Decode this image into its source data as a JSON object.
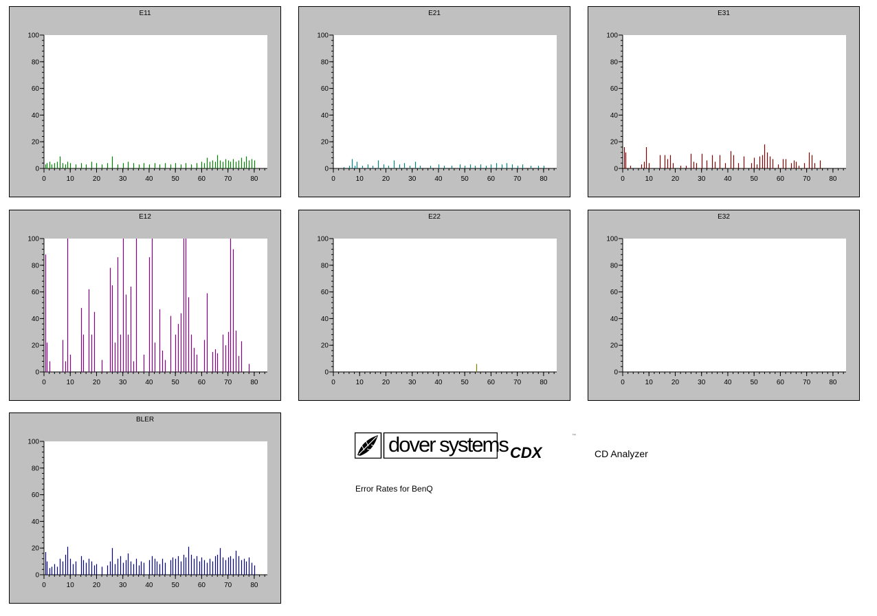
{
  "branding": {
    "logo_text": "dover systems",
    "product": "CDX",
    "trademark": "™",
    "product_desc": "CD Analyzer",
    "subtitle": "Error Rates for BenQ"
  },
  "chart_data": [
    {
      "type": "bar",
      "title": "E11",
      "color": "#008000",
      "xlim": [
        0,
        85
      ],
      "ylim": [
        0,
        100
      ],
      "xticks": [
        0,
        10,
        20,
        30,
        40,
        50,
        60,
        70,
        80
      ],
      "yticks": [
        0,
        20,
        40,
        60,
        80,
        100
      ],
      "x": [
        0.5,
        1,
        2,
        3,
        4,
        5,
        6,
        7,
        8,
        9,
        10,
        12,
        14,
        16,
        18,
        20,
        22,
        24,
        26,
        28,
        30,
        32,
        34,
        36,
        38,
        40,
        42,
        44,
        46,
        48,
        50,
        52,
        54,
        56,
        58,
        60,
        61,
        62,
        63,
        64,
        65,
        66,
        67,
        68,
        69,
        70,
        71,
        72,
        73,
        74,
        75,
        76,
        77,
        78,
        79,
        80
      ],
      "y": [
        3,
        4,
        5,
        3,
        4,
        5,
        9,
        4,
        3,
        5,
        4,
        3,
        4,
        3,
        5,
        4,
        3,
        4,
        9,
        3,
        4,
        5,
        4,
        3,
        4,
        3,
        4,
        3,
        4,
        3,
        4,
        3,
        4,
        3,
        4,
        5,
        4,
        8,
        5,
        6,
        5,
        10,
        6,
        5,
        7,
        6,
        5,
        7,
        5,
        6,
        8,
        5,
        9,
        6,
        7,
        6
      ]
    },
    {
      "type": "bar",
      "title": "E21",
      "color": "#008080",
      "xlim": [
        0,
        85
      ],
      "ylim": [
        0,
        100
      ],
      "xticks": [
        0,
        10,
        20,
        30,
        40,
        50,
        60,
        70,
        80
      ],
      "yticks": [
        0,
        20,
        40,
        60,
        80,
        100
      ],
      "x": [
        4,
        6,
        7,
        8,
        9,
        11,
        13,
        15,
        17,
        19,
        21,
        23,
        25,
        27,
        29,
        31,
        33,
        37,
        40,
        42,
        45,
        48,
        50,
        52,
        54,
        56,
        58,
        60,
        62,
        64,
        66,
        68,
        70,
        72,
        75,
        78,
        80
      ],
      "y": [
        1,
        2,
        7,
        2,
        5,
        2,
        3,
        2,
        6,
        3,
        2,
        6,
        3,
        4,
        2,
        5,
        2,
        2,
        3,
        2,
        2,
        3,
        2,
        3,
        2,
        3,
        2,
        3,
        4,
        3,
        4,
        3,
        2,
        3,
        2,
        2,
        2
      ]
    },
    {
      "type": "bar",
      "title": "E31",
      "color": "#800000",
      "xlim": [
        0,
        85
      ],
      "ylim": [
        0,
        100
      ],
      "xticks": [
        0,
        10,
        20,
        30,
        40,
        50,
        60,
        70,
        80
      ],
      "yticks": [
        0,
        20,
        40,
        60,
        80,
        100
      ],
      "x": [
        0.5,
        1,
        3,
        7,
        8,
        9,
        10,
        14,
        16,
        17,
        18,
        19,
        22,
        24,
        26,
        27,
        28,
        30,
        32,
        34,
        35,
        37,
        39,
        41,
        42,
        44,
        46,
        49,
        50,
        51,
        52,
        53,
        54,
        55,
        56,
        57,
        59,
        61,
        62,
        64,
        65,
        66,
        67,
        69,
        71,
        72,
        73,
        75
      ],
      "y": [
        16,
        12,
        2,
        3,
        5,
        16,
        4,
        10,
        10,
        7,
        10,
        4,
        2,
        2,
        11,
        5,
        4,
        11,
        6,
        10,
        5,
        10,
        4,
        13,
        10,
        4,
        9,
        4,
        8,
        3,
        9,
        10,
        18,
        12,
        9,
        7,
        3,
        7,
        7,
        4,
        6,
        5,
        2,
        4,
        12,
        10,
        4,
        6
      ]
    },
    {
      "type": "bar",
      "title": "E12",
      "color": "#800080",
      "xlim": [
        0,
        85
      ],
      "ylim": [
        0,
        100
      ],
      "xticks": [
        0,
        10,
        20,
        30,
        40,
        50,
        60,
        70,
        80
      ],
      "yticks": [
        0,
        20,
        40,
        60,
        80,
        100
      ],
      "x": [
        0.5,
        1,
        2,
        7,
        8,
        9,
        10,
        14,
        15,
        17,
        18,
        19,
        22,
        25,
        26,
        27,
        28,
        29,
        30,
        31,
        32,
        33,
        34,
        35,
        38,
        40,
        41,
        42,
        44,
        45,
        46,
        48,
        50,
        51,
        52,
        53,
        54,
        55,
        56,
        57,
        58,
        61,
        62,
        64,
        65,
        66,
        68,
        69,
        70,
        71,
        72,
        73,
        74,
        75,
        78
      ],
      "y": [
        88,
        22,
        8,
        24,
        8,
        100,
        13,
        48,
        28,
        62,
        28,
        45,
        9,
        78,
        65,
        22,
        86,
        28,
        100,
        58,
        28,
        64,
        8,
        100,
        13,
        86,
        100,
        22,
        47,
        16,
        9,
        42,
        28,
        36,
        44,
        100,
        100,
        56,
        28,
        18,
        13,
        24,
        59,
        15,
        17,
        14,
        28,
        20,
        30,
        100,
        92,
        31,
        12,
        23,
        6
      ]
    },
    {
      "type": "bar",
      "title": "E22",
      "color": "#808000",
      "xlim": [
        0,
        85
      ],
      "ylim": [
        0,
        100
      ],
      "xticks": [
        0,
        10,
        20,
        30,
        40,
        50,
        60,
        70,
        80
      ],
      "yticks": [
        0,
        20,
        40,
        60,
        80,
        100
      ],
      "x": [
        54.5
      ],
      "y": [
        6
      ]
    },
    {
      "type": "bar",
      "title": "E32",
      "color": "#800000",
      "xlim": [
        0,
        85
      ],
      "ylim": [
        0,
        100
      ],
      "xticks": [
        0,
        10,
        20,
        30,
        40,
        50,
        60,
        70,
        80
      ],
      "yticks": [
        0,
        20,
        40,
        60,
        80,
        100
      ],
      "x": [],
      "y": []
    },
    {
      "type": "bar",
      "title": "BLER",
      "color": "#000080",
      "xlim": [
        0,
        85
      ],
      "ylim": [
        0,
        100
      ],
      "xticks": [
        0,
        10,
        20,
        30,
        40,
        50,
        60,
        70,
        80
      ],
      "yticks": [
        0,
        20,
        40,
        60,
        80,
        100
      ],
      "x": [
        0.5,
        1,
        2,
        3,
        4,
        5,
        6,
        7,
        8,
        9,
        10,
        11,
        12,
        14,
        15,
        16,
        17,
        18,
        19,
        20,
        22,
        24,
        25,
        26,
        27,
        28,
        29,
        30,
        31,
        32,
        33,
        34,
        35,
        36,
        37,
        38,
        40,
        41,
        42,
        43,
        44,
        45,
        46,
        48,
        49,
        50,
        51,
        52,
        53,
        54,
        55,
        56,
        57,
        58,
        59,
        60,
        61,
        62,
        63,
        64,
        65,
        66,
        67,
        68,
        69,
        70,
        71,
        72,
        73,
        74,
        75,
        76,
        77,
        78,
        79,
        80
      ],
      "y": [
        17,
        10,
        5,
        6,
        8,
        6,
        12,
        10,
        15,
        21,
        12,
        8,
        10,
        14,
        11,
        9,
        12,
        10,
        7,
        8,
        6,
        7,
        10,
        20,
        8,
        12,
        14,
        9,
        11,
        16,
        10,
        8,
        12,
        7,
        10,
        9,
        11,
        14,
        12,
        10,
        8,
        12,
        9,
        11,
        13,
        12,
        14,
        10,
        15,
        13,
        21,
        15,
        12,
        14,
        10,
        13,
        11,
        9,
        12,
        10,
        14,
        15,
        20,
        13,
        11,
        13,
        14,
        12,
        18,
        14,
        11,
        12,
        10,
        13,
        9,
        7
      ]
    }
  ]
}
